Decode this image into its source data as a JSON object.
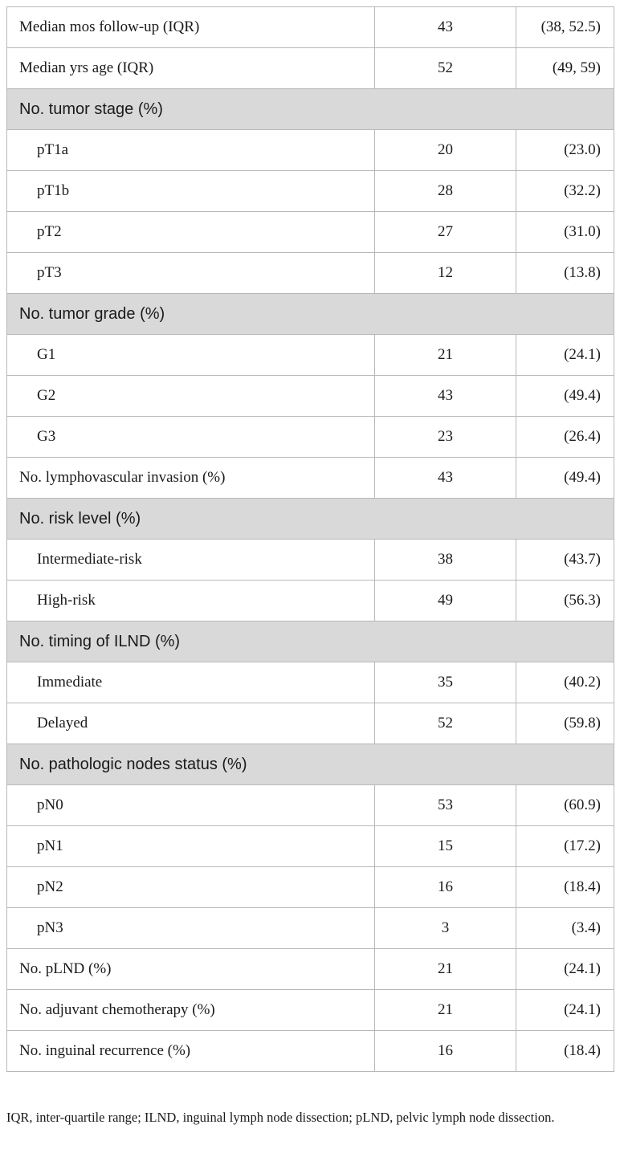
{
  "table": {
    "rows": [
      {
        "kind": "data",
        "indent": false,
        "label": "Median mos follow-up (IQR)",
        "value": "43",
        "extra": "(38, 52.5)"
      },
      {
        "kind": "data",
        "indent": false,
        "label": "Median yrs age (IQR)",
        "value": "52",
        "extra": "(49, 59)"
      },
      {
        "kind": "section",
        "label": "No. tumor stage (%)"
      },
      {
        "kind": "data",
        "indent": true,
        "label": "pT1a",
        "value": "20",
        "extra": "(23.0)"
      },
      {
        "kind": "data",
        "indent": true,
        "label": "pT1b",
        "value": "28",
        "extra": "(32.2)"
      },
      {
        "kind": "data",
        "indent": true,
        "label": "pT2",
        "value": "27",
        "extra": "(31.0)"
      },
      {
        "kind": "data",
        "indent": true,
        "label": "pT3",
        "value": "12",
        "extra": "(13.8)"
      },
      {
        "kind": "section",
        "label": "No. tumor grade (%)"
      },
      {
        "kind": "data",
        "indent": true,
        "label": "G1",
        "value": "21",
        "extra": "(24.1)"
      },
      {
        "kind": "data",
        "indent": true,
        "label": "G2",
        "value": "43",
        "extra": "(49.4)"
      },
      {
        "kind": "data",
        "indent": true,
        "label": "G3",
        "value": "23",
        "extra": "(26.4)"
      },
      {
        "kind": "data",
        "indent": false,
        "label": "No. lymphovascular invasion (%)",
        "value": "43",
        "extra": "(49.4)"
      },
      {
        "kind": "section",
        "label": "No. risk level (%)"
      },
      {
        "kind": "data",
        "indent": true,
        "label": "Intermediate-risk",
        "value": "38",
        "extra": "(43.7)"
      },
      {
        "kind": "data",
        "indent": true,
        "label": "High-risk",
        "value": "49",
        "extra": "(56.3)"
      },
      {
        "kind": "section",
        "label": "No. timing of ILND (%)"
      },
      {
        "kind": "data",
        "indent": true,
        "label": "Immediate",
        "value": "35",
        "extra": "(40.2)"
      },
      {
        "kind": "data",
        "indent": true,
        "label": "Delayed",
        "value": "52",
        "extra": "(59.8)"
      },
      {
        "kind": "section",
        "label": "No. pathologic nodes status (%)"
      },
      {
        "kind": "data",
        "indent": true,
        "label": "pN0",
        "value": "53",
        "extra": "(60.9)"
      },
      {
        "kind": "data",
        "indent": true,
        "label": "pN1",
        "value": "15",
        "extra": "(17.2)"
      },
      {
        "kind": "data",
        "indent": true,
        "label": "pN2",
        "value": "16",
        "extra": "(18.4)"
      },
      {
        "kind": "data",
        "indent": true,
        "label": "pN3",
        "value": "3",
        "extra": "(3.4)"
      },
      {
        "kind": "data",
        "indent": false,
        "label": "No. pLND (%)",
        "value": "21",
        "extra": "(24.1)"
      },
      {
        "kind": "data",
        "indent": false,
        "label": "No. adjuvant chemotherapy (%)",
        "value": "21",
        "extra": "(24.1)"
      },
      {
        "kind": "data",
        "indent": false,
        "label": "No. inguinal recurrence (%)",
        "value": "16",
        "extra": "(18.4)"
      }
    ]
  },
  "footnote": "IQR, inter-quartile range; ILND, inguinal lymph node dissection; pLND, pelvic lymph node dissection.",
  "colors": {
    "section_background": "#d9d9d9",
    "border": "#b8b8b8",
    "text": "#1a1a1a"
  }
}
